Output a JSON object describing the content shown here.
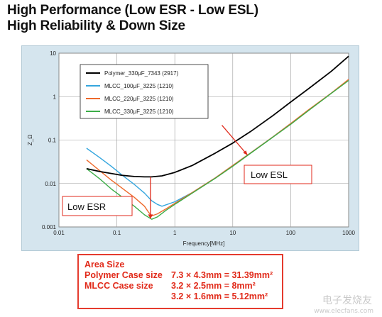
{
  "headline": {
    "line1": "High Performance (Low ESR - Low ESL)",
    "line2": "High Reliability & Down Size"
  },
  "chart_data": {
    "type": "line",
    "xlabel": "Frequency[MHz]",
    "ylabel": "Z_Ω",
    "x_scale": "log",
    "y_scale": "log",
    "xlim": [
      0.01,
      1000
    ],
    "ylim": [
      0.001,
      10
    ],
    "x_ticks": [
      "0.01",
      "0.1",
      "1",
      "10",
      "100",
      "1000"
    ],
    "y_ticks": [
      "10",
      "1",
      "0.1",
      "0.01",
      "0.001"
    ],
    "grid": true,
    "legend": "top-left",
    "series": [
      {
        "name": "Polymer_330μF_7343 (2917)",
        "color": "#000000",
        "x": [
          0.03,
          0.05,
          0.08,
          0.12,
          0.2,
          0.3,
          0.4,
          0.6,
          1,
          2,
          5,
          10,
          20,
          50,
          100,
          200,
          500,
          1000
        ],
        "y": [
          0.022,
          0.019,
          0.017,
          0.0155,
          0.0145,
          0.0142,
          0.0142,
          0.015,
          0.018,
          0.026,
          0.05,
          0.085,
          0.155,
          0.37,
          0.75,
          1.5,
          3.8,
          8.5
        ]
      },
      {
        "name": "MLCC_100μF_3225 (1210)",
        "color": "#35a6de",
        "x": [
          0.03,
          0.05,
          0.08,
          0.12,
          0.2,
          0.3,
          0.4,
          0.5,
          0.6,
          1,
          2,
          5,
          10,
          20,
          50,
          100,
          200,
          500,
          1000
        ],
        "y": [
          0.065,
          0.04,
          0.025,
          0.016,
          0.0095,
          0.006,
          0.004,
          0.0033,
          0.003,
          0.0038,
          0.0062,
          0.0135,
          0.026,
          0.05,
          0.12,
          0.24,
          0.48,
          1.2,
          2.4
        ]
      },
      {
        "name": "MLCC_220μF_3225 (1210)",
        "color": "#ee6a2c",
        "x": [
          0.03,
          0.05,
          0.08,
          0.12,
          0.2,
          0.3,
          0.35,
          0.4,
          0.5,
          0.7,
          1,
          2,
          5,
          10,
          20,
          50,
          100,
          200,
          500,
          1000
        ],
        "y": [
          0.035,
          0.02,
          0.012,
          0.008,
          0.0048,
          0.003,
          0.0022,
          0.0018,
          0.002,
          0.0026,
          0.0035,
          0.0062,
          0.0135,
          0.026,
          0.05,
          0.12,
          0.24,
          0.49,
          1.2,
          2.5
        ]
      },
      {
        "name": "MLCC_330μF_3225 (1210)",
        "color": "#3cad48",
        "x": [
          0.03,
          0.05,
          0.08,
          0.12,
          0.2,
          0.3,
          0.4,
          0.5,
          0.7,
          1,
          2,
          5,
          10,
          20,
          50,
          100,
          200,
          500,
          1000
        ],
        "y": [
          0.022,
          0.013,
          0.0075,
          0.005,
          0.003,
          0.0019,
          0.0015,
          0.0017,
          0.0024,
          0.0033,
          0.006,
          0.0132,
          0.025,
          0.049,
          0.118,
          0.23,
          0.47,
          1.18,
          2.35
        ]
      }
    ],
    "annotations": {
      "low_esr": "Low ESR",
      "low_esl": "Low ESL"
    }
  },
  "area_box": {
    "title": "Area Size",
    "polymer_label": "Polymer Case size",
    "polymer_value": "7.3 × 4.3mm = 31.39mm²",
    "mlcc_label": "MLCC Case size",
    "mlcc_value_1": "3.2 × 2.5mm =   8mm²",
    "mlcc_value_2": "3.2 × 1.6mm = 5.12mm²"
  },
  "watermark": {
    "text": "电子发烧友",
    "url": "www.elecfans.com"
  }
}
